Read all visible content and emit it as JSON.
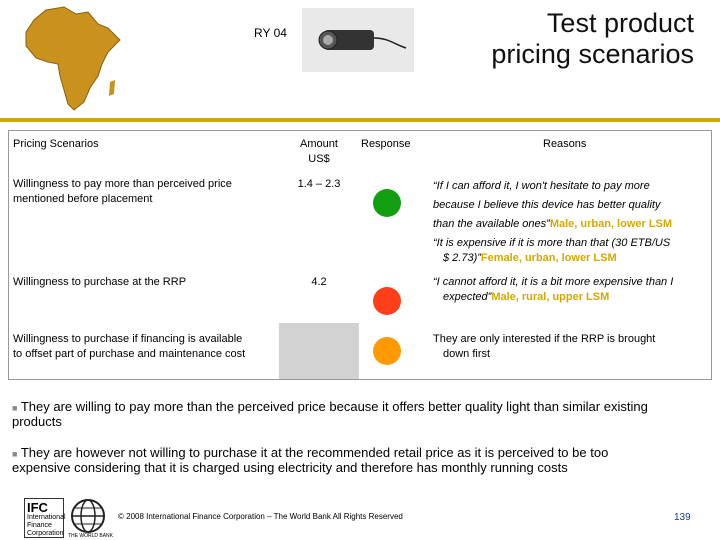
{
  "header": {
    "code": "RY 04",
    "title_line1": "Test product",
    "title_line2": "pricing scenarios"
  },
  "colors": {
    "accent": "#d4a800",
    "green": "#119e11",
    "red": "#ff3e1a",
    "orange": "#ff9a05"
  },
  "table": {
    "headers": {
      "scenarios": "Pricing Scenarios",
      "amount_line1": "Amount",
      "amount_line2": "US$",
      "response": "Response",
      "reasons": "Reasons"
    },
    "rows": [
      {
        "scenario_line1": "Willingness to pay more than perceived price",
        "scenario_line2": "mentioned before placement",
        "amount": "1.4 – 2.3",
        "response": "green",
        "reason1_line1": "“If I can afford it, I won't hesitate to pay more",
        "reason1_line2": "because I believe this device has better quality",
        "reason1_line3": "than the available ones”",
        "reason1_tag": "Male, urban, lower LSM",
        "reason2_line1": "“It is expensive if it is more than that (30 ETB/US",
        "reason2_line2": "$ 2.73)”",
        "reason2_tag": "Female, urban, lower LSM"
      },
      {
        "scenario_line1": "Willingness to purchase at the RRP",
        "amount": "4.2",
        "response": "red",
        "reason1_line1": "“I cannot afford it, it is a bit more expensive than I",
        "reason1_line2": "expected”",
        "reason1_tag": "Male, rural, upper LSM"
      },
      {
        "scenario_line1": "Willingness to purchase if financing is available",
        "scenario_line2": "to offset part of purchase and maintenance cost",
        "amount": "",
        "response": "orange",
        "reason1_line1": "They are only interested if the RRP is brought",
        "reason1_line2": "down first"
      }
    ]
  },
  "bullets": [
    {
      "line1": "They are willing to pay more than the perceived price because it offers better quality light than similar existing",
      "line2": "products"
    },
    {
      "line1": "They are however not willing to purchase it at the recommended retail price as it is perceived to be too",
      "line2": "expensive considering that it is charged using electricity and therefore has monthly running costs"
    }
  ],
  "footer": {
    "ifc_abbrev": "IFC",
    "ifc_line1": "International",
    "ifc_line2": "Finance",
    "ifc_line3": "Corporation",
    "wb_name": "THE WORLD BANK",
    "copyright": "© 2008 International Finance Corporation – The World Bank All Rights Reserved",
    "page": "139"
  }
}
